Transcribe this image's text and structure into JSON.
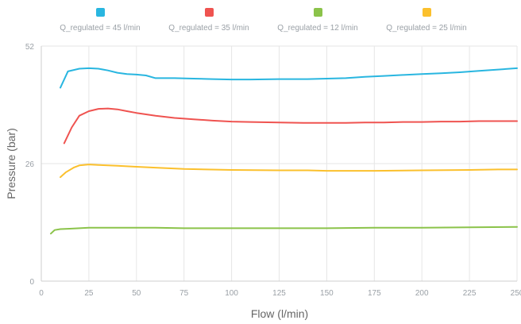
{
  "chart_data": {
    "type": "line",
    "xlabel": "Flow (l/min)",
    "ylabel": "Pressure (bar)",
    "xlim": [
      0,
      250
    ],
    "ylim": [
      0,
      52
    ],
    "x_ticks": [
      0,
      25,
      50,
      75,
      100,
      125,
      150,
      175,
      200,
      225,
      250
    ],
    "x_tick_labels": [
      "0",
      "25",
      "50",
      "75",
      "100",
      "125",
      "150",
      "175",
      "200",
      "225",
      "250"
    ],
    "y_ticks": [
      0,
      26,
      52
    ],
    "y_tick_labels": [
      "0",
      "26",
      "52"
    ],
    "grid": true,
    "legend_position": "top",
    "series": [
      {
        "name": "Q_regulated = 45 l/min",
        "color": "#29b6e0",
        "x": [
          10,
          14,
          20,
          25,
          30,
          35,
          40,
          45,
          50,
          55,
          60,
          70,
          80,
          90,
          100,
          110,
          125,
          140,
          150,
          160,
          170,
          180,
          190,
          200,
          210,
          220,
          230,
          240,
          250
        ],
        "y": [
          42.8,
          46.4,
          47.0,
          47.1,
          47.0,
          46.6,
          46.1,
          45.8,
          45.7,
          45.5,
          44.9,
          44.9,
          44.8,
          44.7,
          44.6,
          44.6,
          44.7,
          44.7,
          44.8,
          44.9,
          45.2,
          45.4,
          45.6,
          45.8,
          46.0,
          46.2,
          46.5,
          46.8,
          47.1
        ]
      },
      {
        "name": "Q_regulated = 35 l/min",
        "color": "#ef5350",
        "x": [
          12,
          16,
          20,
          25,
          30,
          35,
          40,
          45,
          50,
          60,
          70,
          80,
          90,
          100,
          110,
          125,
          140,
          150,
          160,
          170,
          180,
          190,
          200,
          210,
          220,
          230,
          240,
          250
        ],
        "y": [
          30.5,
          34.0,
          36.6,
          37.6,
          38.1,
          38.2,
          38.0,
          37.6,
          37.2,
          36.6,
          36.1,
          35.8,
          35.5,
          35.3,
          35.2,
          35.1,
          35.0,
          35.0,
          35.0,
          35.1,
          35.1,
          35.2,
          35.2,
          35.3,
          35.3,
          35.4,
          35.4,
          35.4
        ]
      },
      {
        "name": "Q_regulated = 12 l/min",
        "color": "#8bc34a",
        "x": [
          5,
          7,
          10,
          15,
          20,
          25,
          30,
          40,
          50,
          60,
          75,
          100,
          125,
          150,
          175,
          200,
          225,
          250
        ],
        "y": [
          10.5,
          11.3,
          11.5,
          11.6,
          11.7,
          11.8,
          11.8,
          11.8,
          11.8,
          11.8,
          11.7,
          11.7,
          11.7,
          11.7,
          11.8,
          11.8,
          11.9,
          12.0
        ]
      },
      {
        "name": "Q_regulated = 25 l/min",
        "color": "#fbc02d",
        "x": [
          10,
          13,
          17,
          20,
          25,
          30,
          40,
          50,
          60,
          75,
          100,
          125,
          140,
          150,
          160,
          175,
          200,
          225,
          240,
          250
        ],
        "y": [
          23.0,
          24.1,
          25.1,
          25.6,
          25.8,
          25.7,
          25.5,
          25.3,
          25.1,
          24.8,
          24.6,
          24.5,
          24.5,
          24.4,
          24.4,
          24.4,
          24.5,
          24.6,
          24.7,
          24.7
        ]
      }
    ]
  }
}
